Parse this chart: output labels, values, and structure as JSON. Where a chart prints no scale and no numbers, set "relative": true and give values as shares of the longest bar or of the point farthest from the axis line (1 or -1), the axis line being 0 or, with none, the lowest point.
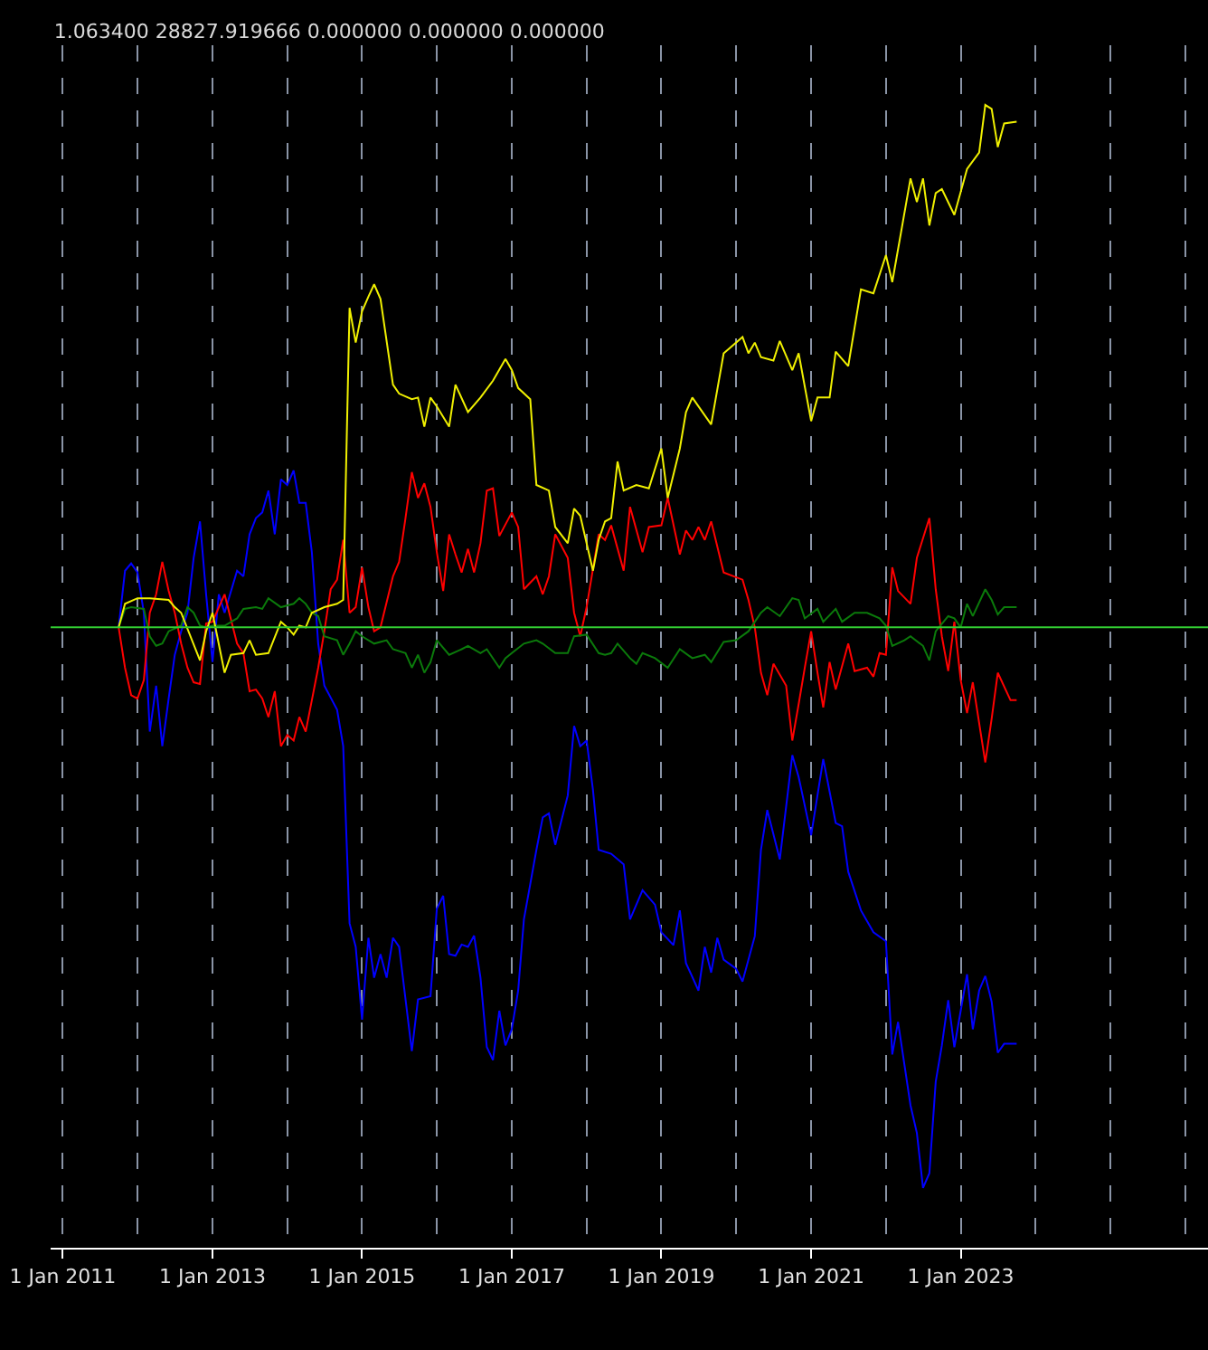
{
  "chart_data": {
    "type": "line",
    "title": "1.063400 28827.919666 0.000000 0.000000 0.000000",
    "relative": true,
    "grid": "x",
    "xlim": [
      "2010-11-03",
      "2026-04-22"
    ],
    "xticks": [
      {
        "value": "2011-01-01",
        "label": "1 Jan 2011"
      },
      {
        "value": "2013-01-01",
        "label": "1 Jan 2013"
      },
      {
        "value": "2015-01-01",
        "label": "1 Jan 2015"
      },
      {
        "value": "2017-01-01",
        "label": "1 Jan 2017"
      },
      {
        "value": "2019-01-01",
        "label": "1 Jan 2019"
      },
      {
        "value": "2021-01-01",
        "label": "1 Jan 2021"
      },
      {
        "value": "2023-01-01",
        "label": "1 Jan 2023"
      }
    ],
    "ref_lines": [
      {
        "axis": "y",
        "value": 0,
        "color": "#32cd32"
      }
    ],
    "series": [
      {
        "color": "#0000ff",
        "x": [
          "2011-10",
          "2011-11",
          "2011-12",
          "2012-01",
          "2012-02",
          "2012-03",
          "2012-04",
          "2012-05",
          "2012-06",
          "2012-07",
          "2012-08",
          "2012-09",
          "2012-10",
          "2012-11",
          "2012-12",
          "2013-01",
          "2013-02",
          "2013-03",
          "2013-05",
          "2013-06",
          "2013-07",
          "2013-08",
          "2013-09",
          "2013-10",
          "2013-11",
          "2013-12",
          "2014-01",
          "2014-02",
          "2014-03",
          "2014-04",
          "2014-05",
          "2014-06",
          "2014-07",
          "2014-09",
          "2014-10",
          "2014-11",
          "2014-12",
          "2015-01",
          "2015-02",
          "2015-03",
          "2015-04",
          "2015-05",
          "2015-06",
          "2015-07",
          "2015-09",
          "2015-10",
          "2015-12",
          "2016-01",
          "2016-02",
          "2016-03",
          "2016-04",
          "2016-05",
          "2016-06",
          "2016-07",
          "2016-08",
          "2016-09",
          "2016-10",
          "2016-11",
          "2016-12",
          "2017-01",
          "2017-02",
          "2017-03",
          "2017-05",
          "2017-06",
          "2017-07",
          "2017-08",
          "2017-10",
          "2017-11",
          "2017-12",
          "2018-01",
          "2018-02",
          "2018-03",
          "2018-05",
          "2018-07",
          "2018-08",
          "2018-10",
          "2018-12",
          "2019-01",
          "2019-03",
          "2019-04",
          "2019-05",
          "2019-07",
          "2019-08",
          "2019-09",
          "2019-10",
          "2019-11",
          "2020-01",
          "2020-02",
          "2020-04",
          "2020-05",
          "2020-06",
          "2020-08",
          "2020-10",
          "2020-11",
          "2021-01",
          "2021-03",
          "2021-05",
          "2021-06",
          "2021-07",
          "2021-09",
          "2021-11",
          "2022-01",
          "2022-02",
          "2022-03",
          "2022-05",
          "2022-06",
          "2022-07",
          "2022-08",
          "2022-09",
          "2022-10",
          "2022-11",
          "2022-12",
          "2023-02",
          "2023-03",
          "2023-04",
          "2023-05",
          "2023-06",
          "2023-07",
          "2023-08",
          "2023-10"
        ],
        "values": [
          0,
          0.101,
          0.114,
          0.098,
          0.026,
          -0.186,
          -0.104,
          -0.212,
          -0.127,
          -0.049,
          -0.007,
          0.026,
          0.124,
          0.189,
          0.059,
          -0.062,
          0.059,
          0.026,
          0.101,
          0.091,
          0.166,
          0.195,
          0.205,
          0.244,
          0.166,
          0.264,
          0.254,
          0.28,
          0.222,
          0.222,
          0.134,
          -0.029,
          -0.104,
          -0.147,
          -0.212,
          -0.528,
          -0.57,
          -0.7,
          -0.554,
          -0.625,
          -0.583,
          -0.625,
          -0.554,
          -0.57,
          -0.756,
          -0.664,
          -0.658,
          -0.502,
          -0.479,
          -0.583,
          -0.586,
          -0.566,
          -0.57,
          -0.55,
          -0.625,
          -0.749,
          -0.772,
          -0.684,
          -0.746,
          -0.717,
          -0.648,
          -0.521,
          -0.397,
          -0.339,
          -0.332,
          -0.388,
          -0.3,
          -0.176,
          -0.212,
          -0.202,
          -0.29,
          -0.397,
          -0.404,
          -0.423,
          -0.521,
          -0.469,
          -0.495,
          -0.544,
          -0.567,
          -0.505,
          -0.599,
          -0.648,
          -0.57,
          -0.616,
          -0.554,
          -0.593,
          -0.609,
          -0.632,
          -0.551,
          -0.397,
          -0.326,
          -0.414,
          -0.228,
          -0.267,
          -0.371,
          -0.235,
          -0.349,
          -0.355,
          -0.436,
          -0.505,
          -0.544,
          -0.56,
          -0.762,
          -0.704,
          -0.853,
          -0.902,
          -1,
          -0.974,
          -0.811,
          -0.746,
          -0.665,
          -0.749,
          -0.619,
          -0.717,
          -0.648,
          -0.622,
          -0.668,
          -0.759,
          -0.743,
          -0.743
        ]
      },
      {
        "color": "#ff0000",
        "x": [
          "2011-10",
          "2011-11",
          "2011-12",
          "2012-01",
          "2012-02",
          "2012-03",
          "2012-04",
          "2012-05",
          "2012-06",
          "2012-07",
          "2012-08",
          "2012-09",
          "2012-10",
          "2012-11",
          "2012-12",
          "2013-01",
          "2013-03",
          "2013-05",
          "2013-06",
          "2013-07",
          "2013-08",
          "2013-09",
          "2013-10",
          "2013-11",
          "2013-12",
          "2014-01",
          "2014-02",
          "2014-03",
          "2014-04",
          "2014-05",
          "2014-06",
          "2014-07",
          "2014-08",
          "2014-09",
          "2014-10",
          "2014-11",
          "2014-12",
          "2015-01",
          "2015-02",
          "2015-03",
          "2015-04",
          "2015-06",
          "2015-07",
          "2015-08",
          "2015-09",
          "2015-10",
          "2015-11",
          "2015-12",
          "2016-01",
          "2016-02",
          "2016-03",
          "2016-04",
          "2016-05",
          "2016-06",
          "2016-07",
          "2016-08",
          "2016-09",
          "2016-10",
          "2016-11",
          "2017-01",
          "2017-02",
          "2017-03",
          "2017-05",
          "2017-06",
          "2017-07",
          "2017-08",
          "2017-10",
          "2017-11",
          "2017-12",
          "2018-01",
          "2018-03",
          "2018-04",
          "2018-05",
          "2018-07",
          "2018-08",
          "2018-10",
          "2018-11",
          "2019-01",
          "2019-02",
          "2019-04",
          "2019-05",
          "2019-06",
          "2019-07",
          "2019-08",
          "2019-09",
          "2019-11",
          "2020-02",
          "2020-03",
          "2020-04",
          "2020-05",
          "2020-06",
          "2020-07",
          "2020-09",
          "2020-10",
          "2020-11",
          "2020-12",
          "2021-01",
          "2021-02",
          "2021-03",
          "2021-04",
          "2021-05",
          "2021-07",
          "2021-08",
          "2021-10",
          "2021-11",
          "2021-12",
          "2022-01",
          "2022-02",
          "2022-03",
          "2022-05",
          "2022-06",
          "2022-08",
          "2022-09",
          "2022-10",
          "2022-11",
          "2022-12",
          "2023-01",
          "2023-02",
          "2023-03",
          "2023-05",
          "2023-06",
          "2023-07",
          "2023-09",
          "2023-10"
        ],
        "values": [
          0,
          -0.072,
          -0.121,
          -0.127,
          -0.094,
          0.026,
          0.059,
          0.117,
          0.065,
          0.026,
          -0.029,
          -0.072,
          -0.098,
          -0.101,
          0.007,
          0.01,
          0.059,
          -0.029,
          -0.046,
          -0.114,
          -0.111,
          -0.127,
          -0.16,
          -0.114,
          -0.212,
          -0.192,
          -0.202,
          -0.16,
          -0.186,
          -0.13,
          -0.072,
          -0.007,
          0.068,
          0.085,
          0.156,
          0.026,
          0.036,
          0.107,
          0.036,
          -0.007,
          0,
          0.091,
          0.117,
          0.195,
          0.277,
          0.231,
          0.257,
          0.215,
          0.134,
          0.065,
          0.166,
          0.13,
          0.098,
          0.14,
          0.098,
          0.15,
          0.244,
          0.248,
          0.163,
          0.205,
          0.179,
          0.068,
          0.091,
          0.059,
          0.091,
          0.166,
          0.124,
          0.026,
          -0.016,
          0.036,
          0.166,
          0.156,
          0.182,
          0.101,
          0.215,
          0.134,
          0.179,
          0.182,
          0.231,
          0.13,
          0.173,
          0.156,
          0.179,
          0.156,
          0.189,
          0.098,
          0.085,
          0.049,
          0,
          -0.081,
          -0.121,
          -0.065,
          -0.104,
          -0.202,
          -0.137,
          -0.072,
          -0.007,
          -0.081,
          -0.143,
          -0.062,
          -0.111,
          -0.029,
          -0.078,
          -0.072,
          -0.088,
          -0.046,
          -0.049,
          0.107,
          0.065,
          0.042,
          0.124,
          0.195,
          0.068,
          -0.016,
          -0.078,
          0.01,
          -0.094,
          -0.153,
          -0.098,
          -0.241,
          -0.163,
          -0.081,
          -0.13,
          -0.13
        ]
      },
      {
        "color": "#0b7a0b",
        "x": [
          "2011-10",
          "2011-11",
          "2011-12",
          "2012-02",
          "2012-03",
          "2012-04",
          "2012-05",
          "2012-06",
          "2012-08",
          "2012-09",
          "2012-10",
          "2012-11",
          "2012-12",
          "2013-01",
          "2013-03",
          "2013-05",
          "2013-06",
          "2013-08",
          "2013-09",
          "2013-10",
          "2013-12",
          "2014-02",
          "2014-03",
          "2014-04",
          "2014-05",
          "2014-06",
          "2014-07",
          "2014-09",
          "2014-10",
          "2014-11",
          "2014-12",
          "2015-01",
          "2015-03",
          "2015-05",
          "2015-06",
          "2015-08",
          "2015-09",
          "2015-10",
          "2015-11",
          "2015-12",
          "2016-01",
          "2016-03",
          "2016-05",
          "2016-06",
          "2016-08",
          "2016-09",
          "2016-11",
          "2016-12",
          "2017-01",
          "2017-03",
          "2017-05",
          "2017-06",
          "2017-08",
          "2017-10",
          "2017-11",
          "2018-01",
          "2018-03",
          "2018-04",
          "2018-05",
          "2018-06",
          "2018-08",
          "2018-09",
          "2018-10",
          "2018-12",
          "2019-02",
          "2019-04",
          "2019-06",
          "2019-08",
          "2019-09",
          "2019-11",
          "2020-01",
          "2020-03",
          "2020-05",
          "2020-06",
          "2020-08",
          "2020-10",
          "2020-11",
          "2020-12",
          "2021-02",
          "2021-03",
          "2021-05",
          "2021-06",
          "2021-08",
          "2021-10",
          "2021-12",
          "2022-01",
          "2022-02",
          "2022-04",
          "2022-05",
          "2022-07",
          "2022-08",
          "2022-09",
          "2022-11",
          "2022-12",
          "2023-01",
          "2023-02",
          "2023-03",
          "2023-05",
          "2023-06",
          "2023-07",
          "2023-08",
          "2023-10"
        ],
        "values": [
          0,
          0.033,
          0.036,
          0.033,
          -0.016,
          -0.033,
          -0.029,
          -0.007,
          0.003,
          0.036,
          0.026,
          0.003,
          0,
          0.003,
          0.003,
          0.016,
          0.033,
          0.036,
          0.033,
          0.052,
          0.036,
          0.042,
          0.052,
          0.042,
          0.026,
          0.02,
          -0.016,
          -0.023,
          -0.049,
          -0.029,
          -0.007,
          -0.016,
          -0.029,
          -0.023,
          -0.039,
          -0.046,
          -0.072,
          -0.049,
          -0.081,
          -0.062,
          -0.023,
          -0.049,
          -0.039,
          -0.033,
          -0.046,
          -0.039,
          -0.072,
          -0.055,
          -0.046,
          -0.029,
          -0.023,
          -0.029,
          -0.046,
          -0.046,
          -0.016,
          -0.013,
          -0.046,
          -0.049,
          -0.046,
          -0.029,
          -0.055,
          -0.065,
          -0.046,
          -0.055,
          -0.072,
          -0.039,
          -0.055,
          -0.049,
          -0.062,
          -0.026,
          -0.023,
          -0.007,
          0.026,
          0.036,
          0.02,
          0.052,
          0.049,
          0.016,
          0.033,
          0.01,
          0.033,
          0.01,
          0.026,
          0.026,
          0.016,
          0.003,
          -0.033,
          -0.023,
          -0.016,
          -0.033,
          -0.059,
          -0.007,
          0.02,
          0.016,
          0,
          0.042,
          0.02,
          0.068,
          0.049,
          0.023,
          0.036,
          0.036
        ]
      },
      {
        "color": "#f0f000",
        "x": [
          "2011-10",
          "2011-11",
          "2012-01",
          "2012-03",
          "2012-06",
          "2012-07",
          "2012-08",
          "2012-11",
          "2012-12",
          "2013-01",
          "2013-03",
          "2013-04",
          "2013-06",
          "2013-07",
          "2013-08",
          "2013-10",
          "2013-12",
          "2014-01",
          "2014-02",
          "2014-03",
          "2014-04",
          "2014-05",
          "2014-07",
          "2014-09",
          "2014-10",
          "2014-11",
          "2014-12",
          "2015-01",
          "2015-02",
          "2015-03",
          "2015-04",
          "2015-06",
          "2015-07",
          "2015-09",
          "2015-10",
          "2015-11",
          "2015-12",
          "2016-01",
          "2016-03",
          "2016-04",
          "2016-06",
          "2016-08",
          "2016-10",
          "2016-12",
          "2017-01",
          "2017-02",
          "2017-04",
          "2017-05",
          "2017-07",
          "2017-08",
          "2017-10",
          "2017-11",
          "2017-12",
          "2018-02",
          "2018-03",
          "2018-04",
          "2018-05",
          "2018-06",
          "2018-07",
          "2018-09",
          "2018-11",
          "2019-01",
          "2019-02",
          "2019-04",
          "2019-05",
          "2019-06",
          "2019-09",
          "2019-11",
          "2020-02",
          "2020-03",
          "2020-04",
          "2020-05",
          "2020-07",
          "2020-08",
          "2020-10",
          "2020-11",
          "2021-01",
          "2021-02",
          "2021-04",
          "2021-05",
          "2021-07",
          "2021-09",
          "2021-11",
          "2022-01",
          "2022-02",
          "2022-05",
          "2022-06",
          "2022-07",
          "2022-08",
          "2022-09",
          "2022-10",
          "2022-12",
          "2023-02",
          "2023-04",
          "2023-05",
          "2023-06",
          "2023-07",
          "2023-08",
          "2023-10"
        ],
        "values": [
          0,
          0.042,
          0.052,
          0.052,
          0.049,
          0.036,
          0.026,
          -0.059,
          -0.007,
          0.026,
          -0.081,
          -0.049,
          -0.046,
          -0.023,
          -0.049,
          -0.046,
          0.01,
          0,
          -0.013,
          0.003,
          0,
          0.026,
          0.036,
          0.042,
          0.049,
          0.57,
          0.508,
          0.564,
          0.59,
          0.612,
          0.586,
          0.433,
          0.417,
          0.407,
          0.41,
          0.358,
          0.41,
          0.394,
          0.358,
          0.433,
          0.384,
          0.41,
          0.44,
          0.479,
          0.459,
          0.427,
          0.407,
          0.254,
          0.244,
          0.179,
          0.15,
          0.212,
          0.199,
          0.101,
          0.156,
          0.189,
          0.195,
          0.296,
          0.244,
          0.254,
          0.248,
          0.319,
          0.231,
          0.319,
          0.384,
          0.41,
          0.362,
          0.489,
          0.518,
          0.489,
          0.508,
          0.482,
          0.476,
          0.511,
          0.459,
          0.489,
          0.368,
          0.41,
          0.41,
          0.492,
          0.466,
          0.603,
          0.596,
          0.664,
          0.616,
          0.801,
          0.759,
          0.801,
          0.717,
          0.775,
          0.782,
          0.736,
          0.818,
          0.847,
          0.932,
          0.925,
          0.857,
          0.899,
          0.902
        ]
      }
    ]
  }
}
